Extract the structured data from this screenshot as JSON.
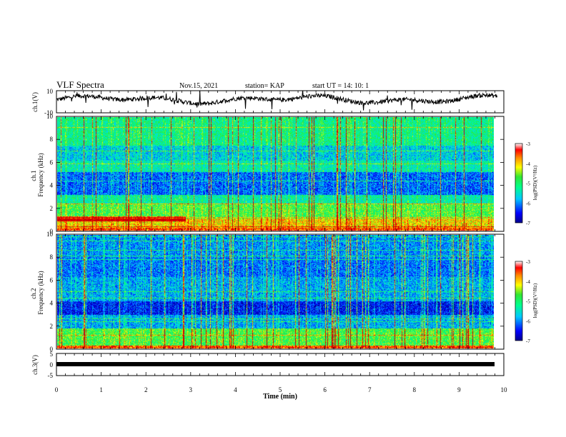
{
  "header": {
    "title": "VLF Spectra",
    "date": "Nov.15, 2021",
    "station": "station= KAP",
    "start": "start  UT =   14: 10: 1"
  },
  "chart_data": [
    {
      "type": "line",
      "panel": "ch1",
      "ylabel": "ch.1(V)",
      "ylim": [
        -10,
        10
      ],
      "yticks": [
        "10",
        "-10"
      ],
      "x_range_min": [
        0,
        9.85
      ],
      "shape": "noisy waveform centred near +2 V, mostly between -5 and +8 V"
    },
    {
      "type": "heatmap",
      "panel": "ch1-spectrogram",
      "ylabel": "ch.1\nFrequency (kHz)",
      "ylim": [
        0,
        10
      ],
      "yticks": [
        "0",
        "2",
        "4",
        "6",
        "8",
        "10"
      ],
      "x_range_min": [
        0,
        9.85
      ],
      "colorbar": {
        "label": "log(PSD)(V²/Hz)",
        "range": [
          -7,
          -3
        ],
        "ticks": [
          "-3",
          "-4",
          "-5",
          "-6",
          "-7"
        ]
      }
    },
    {
      "type": "heatmap",
      "panel": "ch2-spectrogram",
      "ylabel": "ch.2\nFrequency (kHz)",
      "ylim": [
        0,
        10
      ],
      "yticks": [
        "0",
        "2",
        "4",
        "6",
        "8",
        "10"
      ],
      "x_range_min": [
        0,
        9.85
      ],
      "colorbar": {
        "label": "log(PSD)(V²/Hz)",
        "range": [
          -7,
          -3
        ],
        "ticks": [
          "-3",
          "-4",
          "-5",
          "-6",
          "-7"
        ]
      }
    },
    {
      "type": "line",
      "panel": "ch3",
      "ylabel": "ch.3(V)",
      "ylim": [
        -5,
        5
      ],
      "yticks": [
        "5",
        "0",
        "-5"
      ],
      "x_range_min": [
        0,
        9.85
      ],
      "shape": "constant near -1 V"
    }
  ],
  "xaxis": {
    "label": "Time  (min)",
    "range": [
      0,
      10
    ],
    "ticks": [
      "0",
      "1",
      "2",
      "3",
      "4",
      "5",
      "6",
      "7",
      "8",
      "9",
      "10"
    ]
  },
  "colors": {
    "scale": [
      "#00008c",
      "#0000ff",
      "#00c8ff",
      "#00ff8c",
      "#32e632",
      "#ffff00",
      "#ff8c00",
      "#ff0000",
      "#c80000",
      "#ffffff"
    ]
  }
}
